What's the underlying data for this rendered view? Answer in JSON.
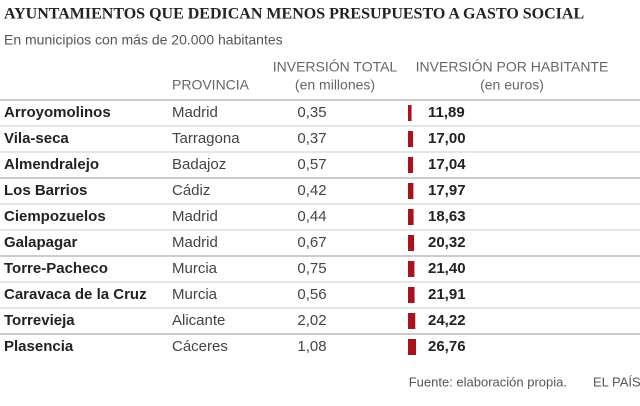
{
  "title": "AYUNTAMIENTOS QUE DEDICAN MENOS PRESUPUESTO A GASTO SOCIAL",
  "subtitle": "En municipios con más de 20.000 habitantes",
  "headers": {
    "provincia": "PROVINCIA",
    "total": [
      "INVERSIÓN TOTAL",
      "(en millones)"
    ],
    "por_habitante": [
      "INVERSIÓN POR HABITANTE",
      "(en euros)"
    ]
  },
  "bar_color": "#a8141e",
  "rows": [
    {
      "municipio": "Arroyomolinos",
      "provincia": "Madrid",
      "total": "0,35",
      "value": 11.89,
      "value_label": "11,89"
    },
    {
      "municipio": "Vila-seca",
      "provincia": "Tarragona",
      "total": "0,37",
      "value": 17.0,
      "value_label": "17,00"
    },
    {
      "municipio": "Almendralejo",
      "provincia": "Badajoz",
      "total": "0,57",
      "value": 17.04,
      "value_label": "17,04"
    },
    {
      "municipio": "Los Barrios",
      "provincia": "Cádiz",
      "total": "0,42",
      "value": 17.97,
      "value_label": "17,97"
    },
    {
      "municipio": "Ciempozuelos",
      "provincia": "Madrid",
      "total": "0,44",
      "value": 18.63,
      "value_label": "18,63"
    },
    {
      "municipio": "Galapagar",
      "provincia": "Madrid",
      "total": "0,67",
      "value": 20.32,
      "value_label": "20,32"
    },
    {
      "municipio": "Torre-Pacheco",
      "provincia": "Murcia",
      "total": "0,75",
      "value": 21.4,
      "value_label": "21,40"
    },
    {
      "municipio": "Caravaca de la Cruz",
      "provincia": "Murcia",
      "total": "0,56",
      "value": 21.91,
      "value_label": "21,91"
    },
    {
      "municipio": "Torrevieja",
      "provincia": "Alicante",
      "total": "2,02",
      "value": 24.22,
      "value_label": "24,22"
    },
    {
      "municipio": "Plasencia",
      "provincia": "Cáceres",
      "total": "1,08",
      "value": 26.76,
      "value_label": "26,76"
    }
  ],
  "source": "Fuente: elaboración propia.",
  "credit": "EL PAÍS"
}
